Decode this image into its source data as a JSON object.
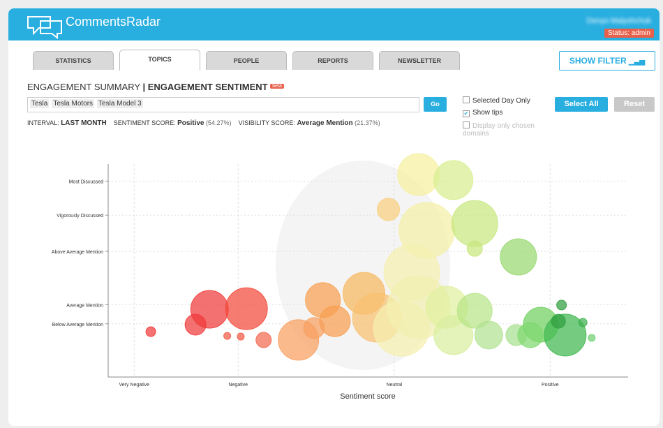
{
  "header": {
    "logo": "CommentsRadar",
    "user": "Denys Malyshchuk",
    "status": "Status: admin"
  },
  "tabs": {
    "items": [
      "STATISTICS",
      "TOPICS",
      "PEOPLE",
      "REPORTS",
      "NEWSLETTER"
    ],
    "active": 1
  },
  "filter_button": "SHOW FILTER",
  "heading": {
    "summary": "ENGAGEMENT SUMMARY",
    "separator": "|",
    "sentiment": "ENGAGEMENT SENTIMENT",
    "badge": "beta"
  },
  "search": {
    "tags": [
      "Tesla",
      "Tesla Motors",
      "Tesla Model 3"
    ],
    "go": "Go"
  },
  "options": [
    {
      "label": "Selected Day Only",
      "checked": false,
      "disabled": false
    },
    {
      "label": "Show tips",
      "checked": true,
      "disabled": false
    },
    {
      "label": "Display only chosen domains",
      "checked": false,
      "disabled": true
    }
  ],
  "buttons": {
    "select_all": "Select All",
    "reset": "Reset"
  },
  "info": {
    "interval_label": "INTERVAL:",
    "interval_value": "LAST MONTH",
    "sentiment_label": "SENTIMENT SCORE:",
    "sentiment_value": "Positive",
    "sentiment_pct": "(54.27%)",
    "visibility_label": "VISIBILITY SCORE:",
    "visibility_value": "Average Mention",
    "visibility_pct": "(21.37%)"
  },
  "chart_data": {
    "type": "bubble",
    "xlabel": "Sentiment score",
    "xlim": [
      0,
      100
    ],
    "ylim": [
      0,
      100
    ],
    "xticks": [
      {
        "value": 5,
        "label": "Very Negative"
      },
      {
        "value": 25,
        "label": "Negative"
      },
      {
        "value": 55,
        "label": "Neutral"
      },
      {
        "value": 85,
        "label": "Positive"
      }
    ],
    "yticks": [
      {
        "value": 25,
        "label": "Below Average Mention"
      },
      {
        "value": 34,
        "label": "Average Mention"
      },
      {
        "value": 59,
        "label": "Above Average Mention"
      },
      {
        "value": 76,
        "label": "Vigorously Discussed"
      },
      {
        "value": 92,
        "label": "Most Discussed"
      }
    ],
    "grid": true,
    "x": [
      8.2,
      16.8,
      19.5,
      26.6,
      22.9,
      25.5,
      29.9,
      36.6,
      41.3,
      43.6,
      49.2,
      51.7,
      53.9,
      59.7,
      66.4,
      61.3,
      70.5,
      70.5,
      78.9,
      58.4,
      56.4,
      59.7,
      65.1,
      66.4,
      70.5,
      73.2,
      78.5,
      83.2,
      87.9,
      86.6,
      87.2,
      91.3,
      93.0,
      39.6,
      81.2
    ],
    "values": [
      21.3,
      24.6,
      31.8,
      32.1,
      19.3,
      19.0,
      17.4,
      17.4,
      36.1,
      26.2,
      39.3,
      27.9,
      78.7,
      95.1,
      92.5,
      68.9,
      72.1,
      60.3,
      56.4,
      49.2,
      22.9,
      32.8,
      32.8,
      19.7,
      31.1,
      19.7,
      19.7,
      24.6,
      19.7,
      26.2,
      33.8,
      25.6,
      18.4,
      23.0,
      19.7
    ],
    "sizes": [
      7,
      15,
      27,
      30,
      5,
      5,
      11,
      29,
      25,
      22,
      30,
      35,
      16,
      30,
      28,
      40,
      33,
      11,
      26,
      40,
      40,
      45,
      30,
      28,
      25,
      20,
      15,
      25,
      30,
      10,
      7,
      6,
      5,
      15,
      18
    ],
    "colors": [
      "#f03a3a",
      "#f03a3a",
      "#f03a3a",
      "#f24a3a",
      "#f25a45",
      "#f25a45",
      "#f46a50",
      "#f8a060",
      "#f8a050",
      "#f8a050",
      "#f8b860",
      "#f8c070",
      "#f9d080",
      "#f5f0a0",
      "#d8ee90",
      "#f5f0a8",
      "#c8e880",
      "#c8e880",
      "#98d870",
      "#f5f0b0",
      "#f5f0b0",
      "#f2f0b0",
      "#e0f0a0",
      "#d8eea0",
      "#b8e488",
      "#b0e290",
      "#a8e090",
      "#70d060",
      "#40b850",
      "#30a040",
      "#30a040",
      "#40b050",
      "#70d070",
      "#f8a060",
      "#80d870"
    ]
  }
}
